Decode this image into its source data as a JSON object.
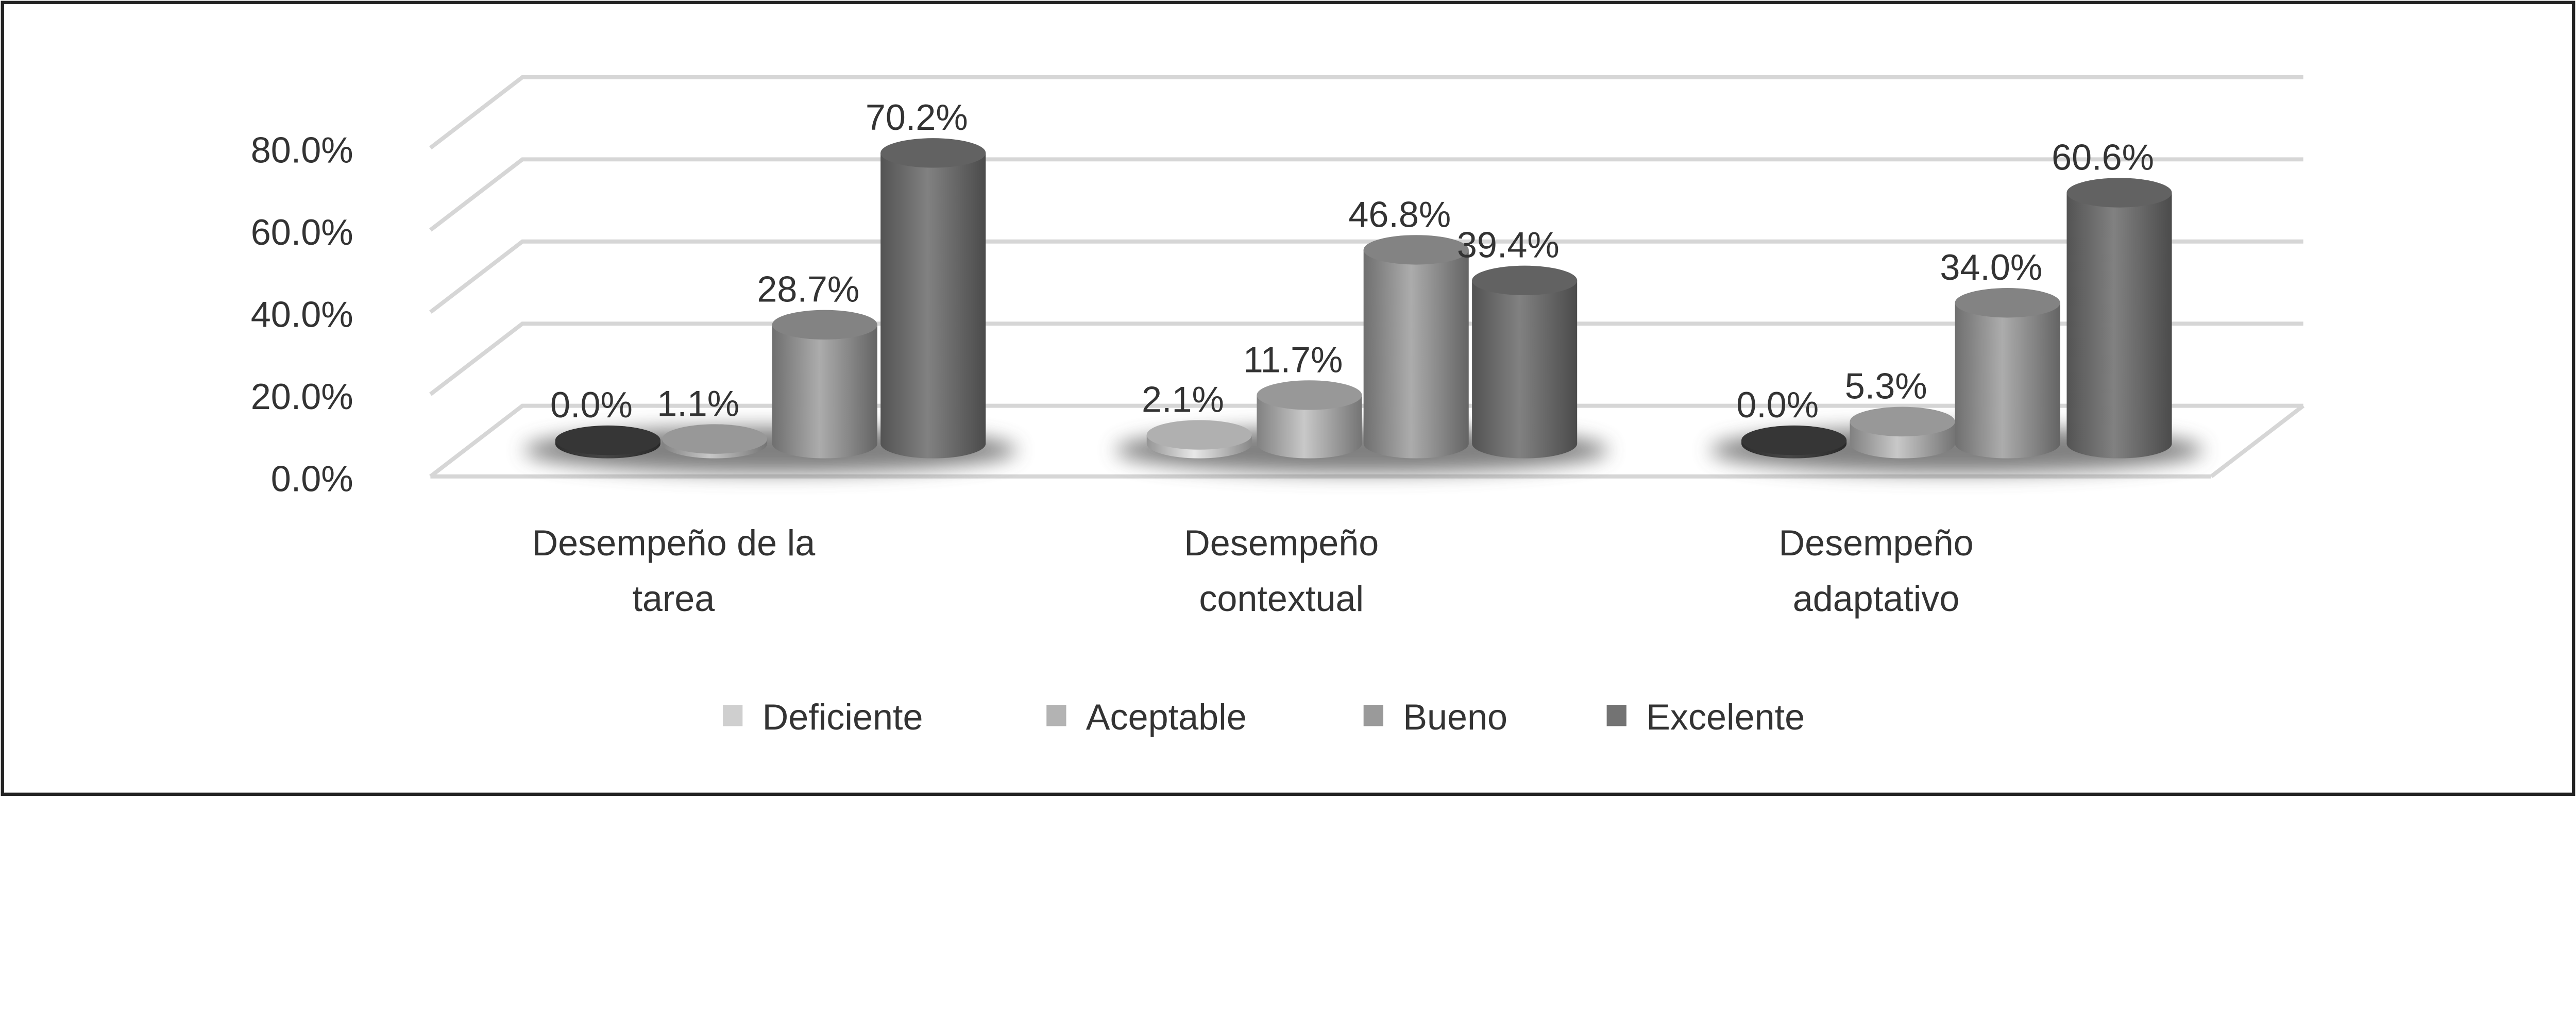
{
  "chart_data": {
    "type": "bar",
    "style": "3d-cylinder",
    "categories": [
      [
        "Desempeño de la",
        "tarea"
      ],
      [
        "Desempeño",
        "contextual"
      ],
      [
        "Desempeño",
        "adaptativo"
      ]
    ],
    "series": [
      {
        "name": "Deficiente",
        "values": [
          0.0,
          2.1,
          0.0
        ],
        "color": "#cfcfcf"
      },
      {
        "name": "Aceptable",
        "values": [
          1.1,
          11.7,
          5.3
        ],
        "color": "#b3b3b3"
      },
      {
        "name": "Bueno",
        "values": [
          28.7,
          46.8,
          34.0
        ],
        "color": "#9a9a9a"
      },
      {
        "name": "Excelente",
        "values": [
          70.2,
          39.4,
          60.6
        ],
        "color": "#737373"
      }
    ],
    "data_labels": [
      [
        "0.0%",
        "2.1%",
        "0.0%"
      ],
      [
        "1.1%",
        "11.7%",
        "5.3%"
      ],
      [
        "28.7%",
        "46.8%",
        "34.0%"
      ],
      [
        "70.2%",
        "39.4%",
        "60.6%"
      ]
    ],
    "y_ticks": [
      "0.0%",
      "20.0%",
      "40.0%",
      "60.0%",
      "80.0%"
    ],
    "ylim": [
      0,
      80
    ],
    "grid": true,
    "legend": "bottom",
    "title": "",
    "xlabel": "",
    "ylabel": ""
  }
}
